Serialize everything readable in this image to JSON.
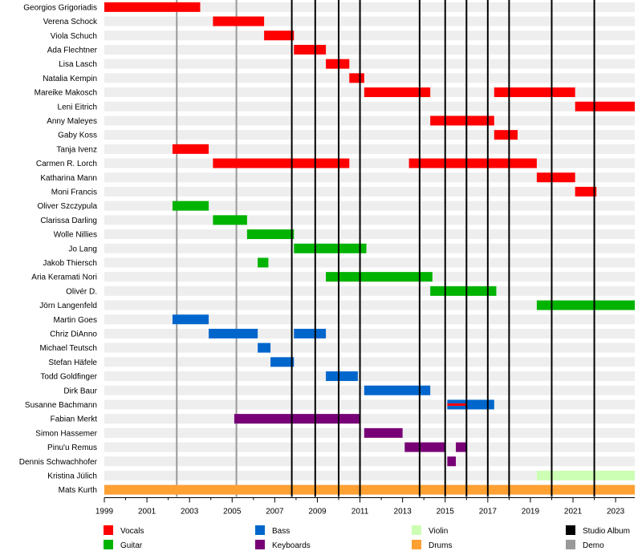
{
  "chart_data": {
    "type": "timeline",
    "title": "",
    "xlim": [
      1999,
      2023.9
    ],
    "x_ticks": [
      "1999",
      "2001",
      "2003",
      "2005",
      "2007",
      "2009",
      "2011",
      "2013",
      "2015",
      "2017",
      "2019",
      "2021",
      "2023"
    ],
    "colors": {
      "Vocals": "#ff0000",
      "Guitar": "#00b300",
      "Bass": "#0066cc",
      "Keyboards": "#770077",
      "Violin": "#ccffb3",
      "Drums": "#ffa033",
      "Studio Album": "#000000",
      "Demo": "#999999"
    },
    "members": [
      {
        "name": "Georgios Grigoriadis",
        "spans": [
          {
            "role": "Vocals",
            "start": 1999.0,
            "end": 2003.5
          }
        ]
      },
      {
        "name": "Verena Schock",
        "spans": [
          {
            "role": "Vocals",
            "start": 2004.1,
            "end": 2006.5
          }
        ]
      },
      {
        "name": "Viola Schuch",
        "spans": [
          {
            "role": "Vocals",
            "start": 2006.5,
            "end": 2007.9
          }
        ]
      },
      {
        "name": "Ada Flechtner",
        "spans": [
          {
            "role": "Vocals",
            "start": 2007.9,
            "end": 2009.4
          }
        ]
      },
      {
        "name": "Lisa Lasch",
        "spans": [
          {
            "role": "Vocals",
            "start": 2009.4,
            "end": 2010.5
          }
        ]
      },
      {
        "name": "Natalia Kempin",
        "spans": [
          {
            "role": "Vocals",
            "start": 2010.5,
            "end": 2011.2
          }
        ]
      },
      {
        "name": "Mareike Makosch",
        "spans": [
          {
            "role": "Vocals",
            "start": 2011.2,
            "end": 2014.3
          },
          {
            "role": "Vocals",
            "start": 2017.3,
            "end": 2021.1
          }
        ]
      },
      {
        "name": "Leni Eitrich",
        "spans": [
          {
            "role": "Vocals",
            "start": 2021.1,
            "end": 2023.9
          }
        ]
      },
      {
        "name": "Anny Maleyes",
        "spans": [
          {
            "role": "Vocals",
            "start": 2014.3,
            "end": 2017.3
          }
        ]
      },
      {
        "name": "Gaby Koss",
        "spans": [
          {
            "role": "Vocals",
            "start": 2017.3,
            "end": 2018.4
          }
        ]
      },
      {
        "name": "Tanja Ivenz",
        "spans": [
          {
            "role": "Vocals",
            "start": 2002.2,
            "end": 2003.9
          }
        ]
      },
      {
        "name": "Carmen R. Lorch",
        "spans": [
          {
            "role": "Vocals",
            "start": 2004.1,
            "end": 2010.5
          },
          {
            "role": "Vocals",
            "start": 2013.3,
            "end": 2019.3
          }
        ]
      },
      {
        "name": "Katharina Mann",
        "spans": [
          {
            "role": "Vocals",
            "start": 2019.3,
            "end": 2021.1
          }
        ]
      },
      {
        "name": "Moni Francis",
        "spans": [
          {
            "role": "Vocals",
            "start": 2021.1,
            "end": 2022.1
          }
        ]
      },
      {
        "name": "Oliver Szczypula",
        "spans": [
          {
            "role": "Guitar",
            "start": 2002.2,
            "end": 2003.9
          }
        ]
      },
      {
        "name": "Clarissa Darling",
        "spans": [
          {
            "role": "Guitar",
            "start": 2004.1,
            "end": 2005.7
          }
        ]
      },
      {
        "name": "Wolle Nillies",
        "spans": [
          {
            "role": "Guitar",
            "start": 2005.7,
            "end": 2007.9
          }
        ]
      },
      {
        "name": "Jo Lang",
        "spans": [
          {
            "role": "Guitar",
            "start": 2007.9,
            "end": 2011.3
          }
        ]
      },
      {
        "name": "Jakob Thiersch",
        "spans": [
          {
            "role": "Guitar",
            "start": 2006.2,
            "end": 2006.7
          }
        ]
      },
      {
        "name": "Aria Keramati Nori",
        "spans": [
          {
            "role": "Guitar",
            "start": 2009.4,
            "end": 2014.4
          }
        ]
      },
      {
        "name": "Olivér D.",
        "spans": [
          {
            "role": "Guitar",
            "start": 2014.3,
            "end": 2017.4
          }
        ]
      },
      {
        "name": "Jörn Langenfeld",
        "spans": [
          {
            "role": "Guitar",
            "start": 2019.3,
            "end": 2023.9
          }
        ]
      },
      {
        "name": "Martin Goes",
        "spans": [
          {
            "role": "Bass",
            "start": 2002.2,
            "end": 2003.9
          }
        ]
      },
      {
        "name": "Chriz DiAnno",
        "spans": [
          {
            "role": "Bass",
            "start": 2003.9,
            "end": 2006.2
          },
          {
            "role": "Bass",
            "start": 2007.9,
            "end": 2009.4
          }
        ]
      },
      {
        "name": "Michael Teutsch",
        "spans": [
          {
            "role": "Bass",
            "start": 2006.2,
            "end": 2006.8
          }
        ]
      },
      {
        "name": "Stefan Häfele",
        "spans": [
          {
            "role": "Bass",
            "start": 2006.8,
            "end": 2007.9
          }
        ]
      },
      {
        "name": "Todd Goldfinger",
        "spans": [
          {
            "role": "Bass",
            "start": 2009.4,
            "end": 2010.9
          }
        ]
      },
      {
        "name": "Dirk Baur",
        "spans": [
          {
            "role": "Bass",
            "start": 2011.2,
            "end": 2014.3
          }
        ]
      },
      {
        "name": "Susanne Bachmann",
        "spans": [
          {
            "role": "Bass",
            "start": 2015.1,
            "end": 2017.3
          },
          {
            "role": "Vocals",
            "start": 2015.1,
            "end": 2016.0,
            "thin": true
          }
        ]
      },
      {
        "name": "Fabian Merkt",
        "spans": [
          {
            "role": "Keyboards",
            "start": 2005.1,
            "end": 2011.0
          }
        ]
      },
      {
        "name": "Simon Hassemer",
        "spans": [
          {
            "role": "Keyboards",
            "start": 2011.2,
            "end": 2013.0
          }
        ]
      },
      {
        "name": "Pinu'u Remus",
        "spans": [
          {
            "role": "Keyboards",
            "start": 2013.1,
            "end": 2015.0
          },
          {
            "role": "Keyboards",
            "start": 2015.5,
            "end": 2016.0
          }
        ]
      },
      {
        "name": "Dennis Schwachhofer",
        "spans": [
          {
            "role": "Keyboards",
            "start": 2015.1,
            "end": 2015.5
          }
        ]
      },
      {
        "name": "Kristina Jülich",
        "spans": [
          {
            "role": "Violin",
            "start": 2019.3,
            "end": 2023.9
          }
        ]
      },
      {
        "name": "Mats Kurth",
        "spans": [
          {
            "role": "Drums",
            "start": 1999.0,
            "end": 2023.9
          }
        ]
      }
    ],
    "studio_albums": [
      2007.8,
      2008.9,
      2010.0,
      2011.0,
      2013.8,
      2015.0,
      2016.0,
      2017.0,
      2018.0,
      2020.0,
      2022.0
    ],
    "demos": [
      2002.4,
      2005.2
    ],
    "legend": [
      "Vocals",
      "Guitar",
      "Bass",
      "Keyboards",
      "Violin",
      "Drums",
      "Studio Album",
      "Demo"
    ]
  }
}
